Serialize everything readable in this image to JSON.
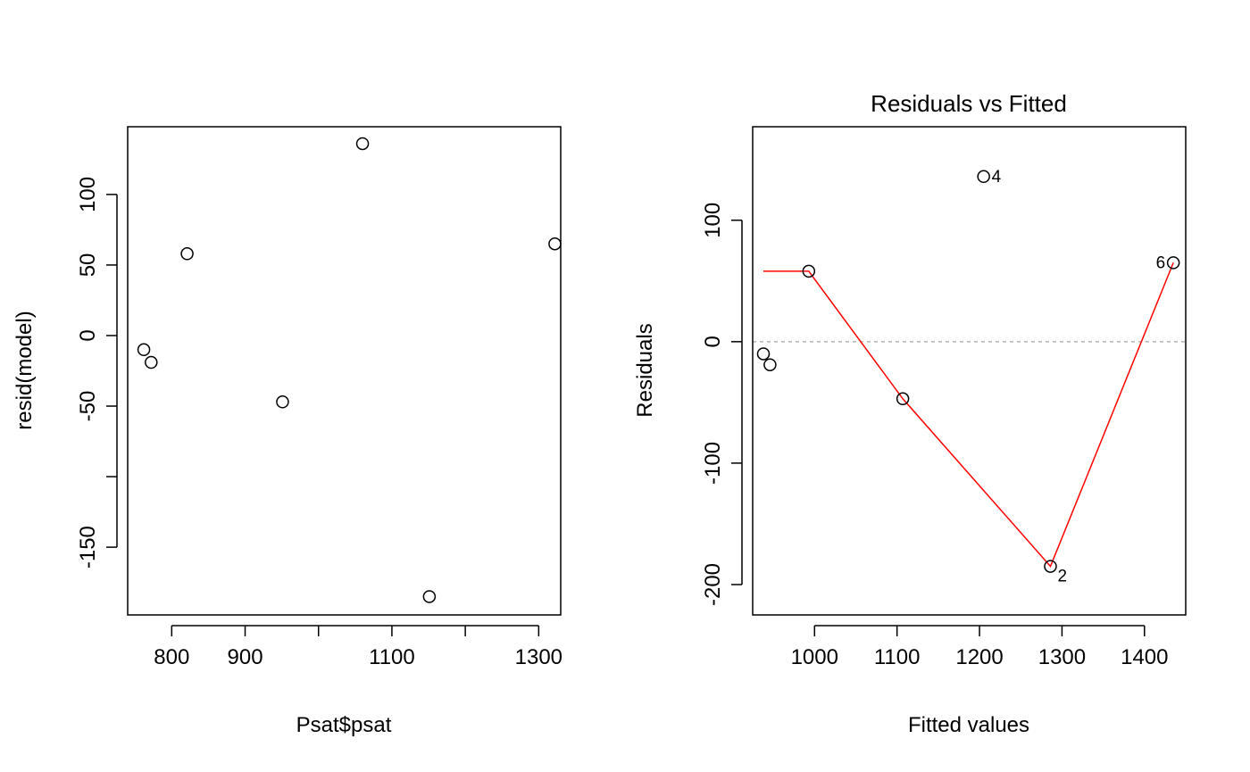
{
  "chart_data": [
    {
      "type": "scatter",
      "title": "",
      "xlabel": "Psat$psat",
      "ylabel": "resid(model)",
      "xlim": [
        740,
        1330
      ],
      "ylim": [
        -198,
        148
      ],
      "xticks": [
        800,
        900,
        1000,
        1100,
        1200,
        1300
      ],
      "xtick_labels": [
        "800",
        "900",
        "",
        "1100",
        "",
        "1300"
      ],
      "yticks": [
        -150,
        -100,
        -50,
        0,
        50,
        100
      ],
      "ytick_labels": [
        "-150",
        "",
        "-50",
        "0",
        "50",
        "100"
      ],
      "grid": false,
      "points": [
        {
          "x": 762,
          "y": -10
        },
        {
          "x": 772,
          "y": -19
        },
        {
          "x": 821,
          "y": 58
        },
        {
          "x": 951,
          "y": -47
        },
        {
          "x": 1060,
          "y": 136
        },
        {
          "x": 1151,
          "y": -185
        },
        {
          "x": 1322,
          "y": 65
        }
      ]
    },
    {
      "type": "scatter",
      "title": "Residuals vs Fitted",
      "xlabel": "Fitted values",
      "ylabel": "Residuals",
      "xlim": [
        925,
        1450
      ],
      "ylim": [
        -225,
        177
      ],
      "xticks": [
        1000,
        1100,
        1200,
        1300,
        1400
      ],
      "xtick_labels": [
        "1000",
        "1100",
        "1200",
        "1300",
        "1400"
      ],
      "yticks": [
        -200,
        -100,
        0,
        100
      ],
      "ytick_labels": [
        "-200",
        "-100",
        "0",
        "100"
      ],
      "grid": false,
      "zero_line": {
        "y": 0,
        "color": "#b3b3b3",
        "style": "dashed"
      },
      "points": [
        {
          "x": 938,
          "y": -10
        },
        {
          "x": 946,
          "y": -19
        },
        {
          "x": 993,
          "y": 58
        },
        {
          "x": 1107,
          "y": -47
        },
        {
          "x": 1205,
          "y": 136,
          "label": "4"
        },
        {
          "x": 1286,
          "y": -185,
          "label": "2"
        },
        {
          "x": 1435,
          "y": 65,
          "label": "6"
        }
      ],
      "smooth_line": {
        "color": "#ff0000",
        "points": [
          {
            "x": 938,
            "y": 58
          },
          {
            "x": 993,
            "y": 58
          },
          {
            "x": 1107,
            "y": -47
          },
          {
            "x": 1286,
            "y": -185
          },
          {
            "x": 1435,
            "y": 65
          }
        ]
      }
    }
  ]
}
